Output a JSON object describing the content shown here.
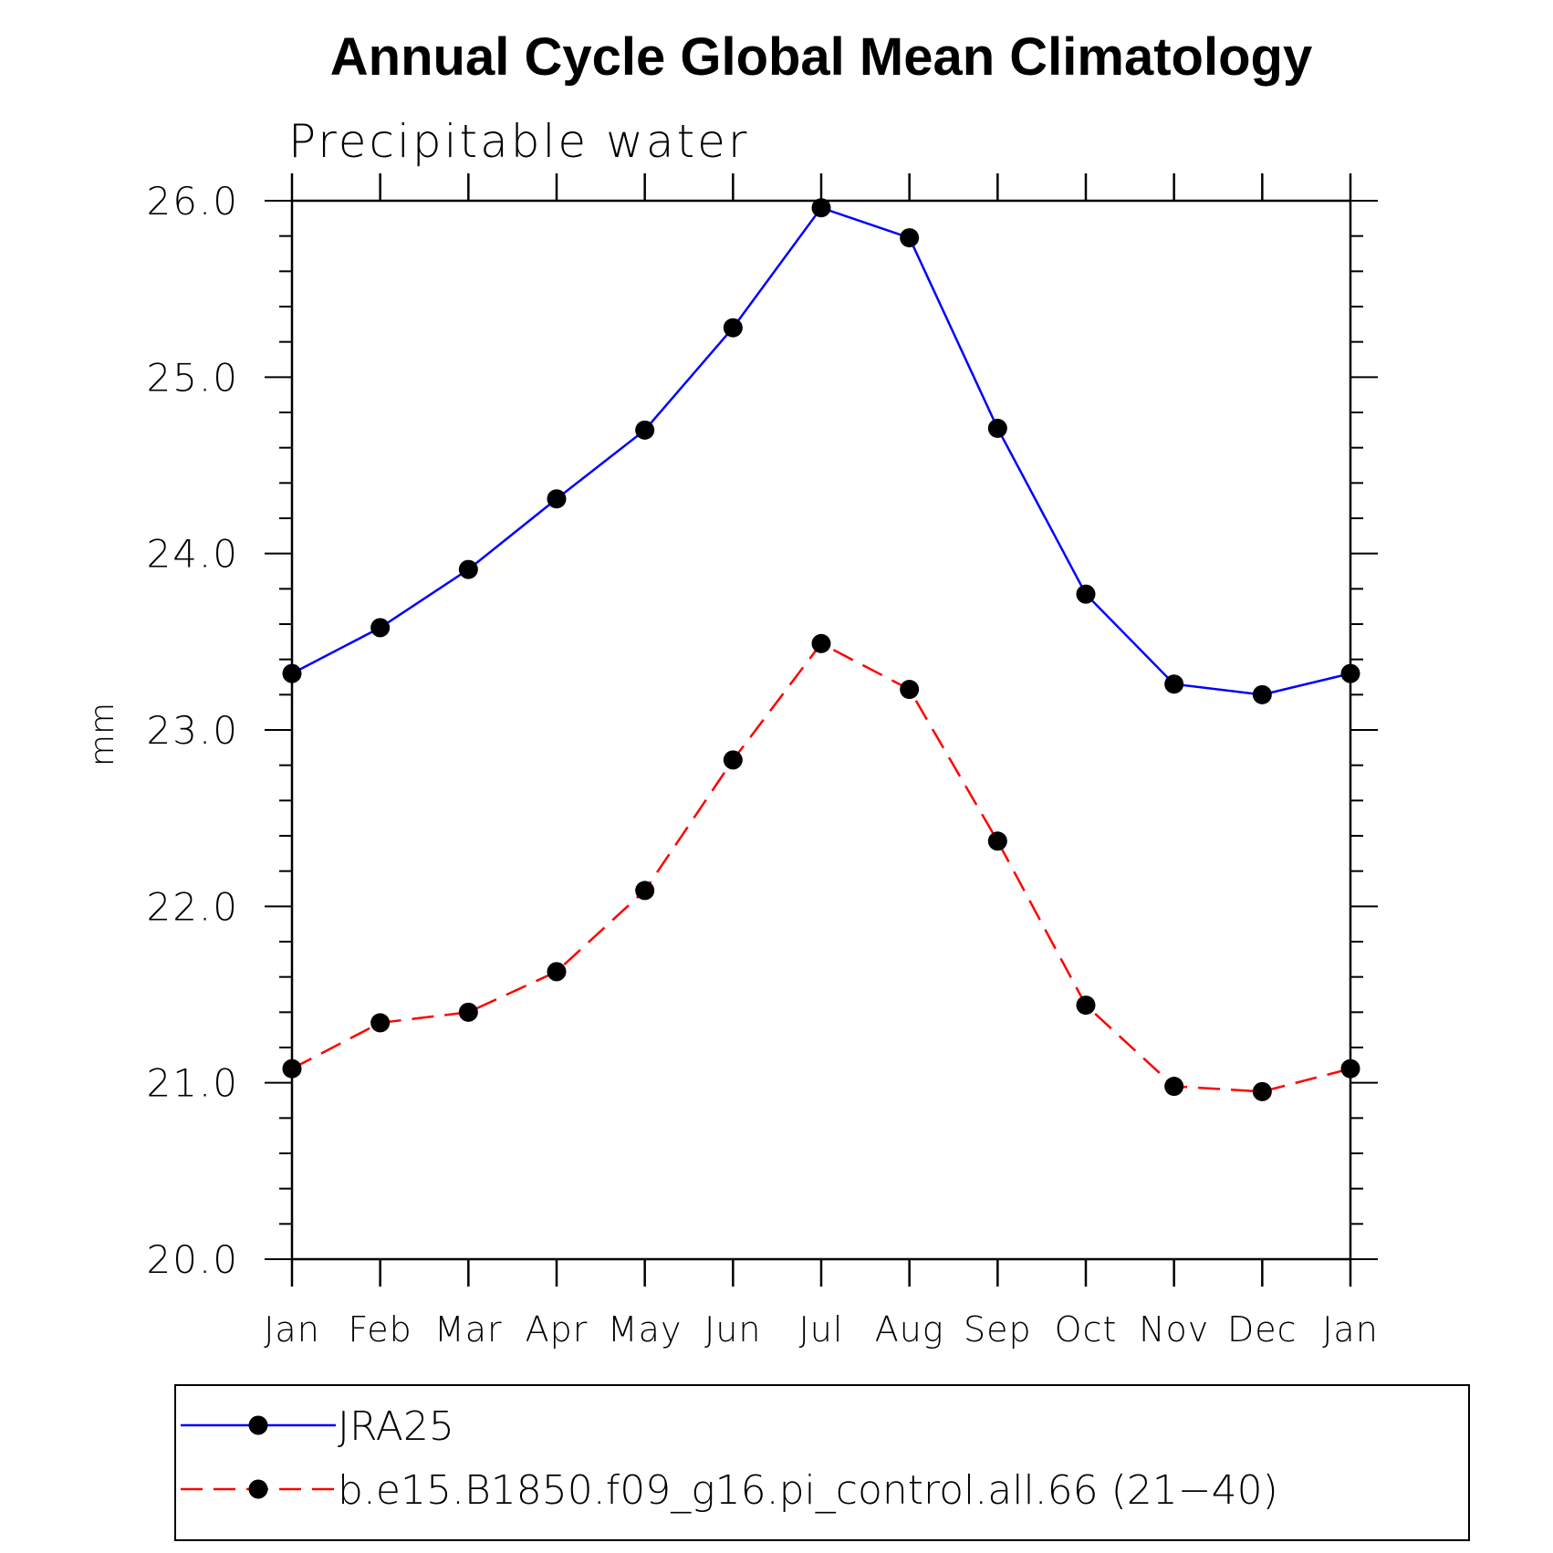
{
  "chart_data": {
    "type": "line",
    "title": "Annual Cycle Global Mean Climatology",
    "subtitle": "Precipitable water",
    "ylabel": "mm",
    "xlabel": "",
    "ylim": [
      20.0,
      26.0
    ],
    "yticks": [
      "20.0",
      "21.0",
      "22.0",
      "23.0",
      "24.0",
      "25.0",
      "26.0"
    ],
    "categories": [
      "Jan",
      "Feb",
      "Mar",
      "Apr",
      "May",
      "Jun",
      "Jul",
      "Aug",
      "Sep",
      "Oct",
      "Nov",
      "Dec",
      "Jan"
    ],
    "grid": false,
    "legend_position": "bottom",
    "series": [
      {
        "name": "JRA25",
        "color": "#0000ff",
        "dashed": false,
        "values": [
          23.32,
          23.58,
          23.91,
          24.31,
          24.7,
          25.28,
          25.96,
          25.79,
          24.71,
          23.77,
          23.26,
          23.2,
          23.32
        ]
      },
      {
        "name": "b.e15.B1850.f09_g16.pi_control.all.66 (21−40)",
        "color": "#ff0000",
        "dashed": true,
        "values": [
          21.08,
          21.34,
          21.4,
          21.63,
          22.09,
          22.83,
          23.49,
          23.23,
          22.37,
          21.44,
          20.98,
          20.95,
          21.08
        ]
      }
    ]
  }
}
